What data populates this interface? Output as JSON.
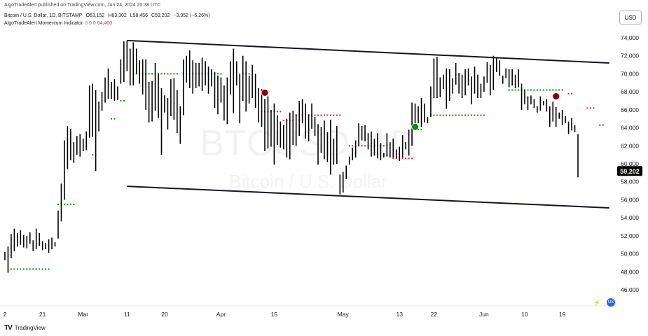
{
  "header": {
    "published": "AlgoTradeAlert published on TradingView.com, Jun 24, 2024 20:38 UTC",
    "symbol": {
      "name": "Bitcoin / U.S. Dollar, 1D, BITSTAMP",
      "open": "O63,152",
      "high": "H63,302",
      "low": "L58,456",
      "close": "C59,202",
      "change": "−3,952 (−6.26%)"
    },
    "indicator": {
      "name": "AlgoTradeAlert Momentum Indicator",
      "params": "0 0 0",
      "value": "64,400"
    }
  },
  "currency_button": "USD",
  "footer": {
    "logo_glyph": "🐯",
    "brand": "TradingView"
  },
  "watermark": {
    "ticker": "BTCUSD, 1D",
    "name": "Bitcoin / U.S. Dollar"
  },
  "colors": {
    "bar": "#000000",
    "support": "#00a000",
    "resistance": "#e91e3a",
    "signal_buy": "#118811",
    "signal_sell": "#8b0000",
    "channel": "#131722",
    "last_price_bg": "#000000"
  },
  "chart_data": {
    "type": "ohlc",
    "y_axis": {
      "min": 45000,
      "max": 75000,
      "ticks": [
        46000,
        48000,
        50000,
        52000,
        54000,
        56000,
        58000,
        60000,
        62000,
        64000,
        66000,
        68000,
        70000,
        72000,
        74000
      ],
      "position": "right"
    },
    "x_axis": {
      "labels": [
        "2",
        "21",
        "Mar",
        "11",
        "20",
        "Apr",
        "15",
        "May",
        "13",
        "22",
        "Jun",
        "10",
        "19"
      ],
      "label_bar_index": [
        0,
        12,
        25,
        39,
        51,
        69,
        86,
        108,
        126,
        137,
        153,
        166,
        178
      ]
    },
    "last_price": {
      "label": "59,202",
      "value": 59202
    },
    "high_low": [
      [
        50200,
        49300
      ],
      [
        50800,
        47900
      ],
      [
        52200,
        49500
      ],
      [
        52800,
        50300
      ],
      [
        52300,
        50800
      ],
      [
        52600,
        51000
      ],
      [
        52100,
        50700
      ],
      [
        52000,
        50600
      ],
      [
        52400,
        51100
      ],
      [
        51500,
        50300
      ],
      [
        52800,
        50500
      ],
      [
        52300,
        50900
      ],
      [
        51400,
        50400
      ],
      [
        51200,
        50500
      ],
      [
        51600,
        50100
      ],
      [
        51800,
        50500
      ],
      [
        51300,
        50800
      ],
      [
        54800,
        51700
      ],
      [
        57800,
        53600
      ],
      [
        62600,
        56000
      ],
      [
        64200,
        59400
      ],
      [
        63900,
        60400
      ],
      [
        62400,
        60100
      ],
      [
        63100,
        61000
      ],
      [
        63300,
        60800
      ],
      [
        62800,
        61400
      ],
      [
        63600,
        61500
      ],
      [
        68700,
        62900
      ],
      [
        68900,
        63000
      ],
      [
        68200,
        59200
      ],
      [
        66900,
        63600
      ],
      [
        68000,
        65900
      ],
      [
        69600,
        66800
      ],
      [
        70600,
        67200
      ],
      [
        69100,
        67200
      ],
      [
        69400,
        67000
      ],
      [
        68600,
        67100
      ],
      [
        71600,
        68900
      ],
      [
        73600,
        69100
      ],
      [
        73700,
        70300
      ],
      [
        72800,
        68700
      ],
      [
        73500,
        68700
      ],
      [
        72800,
        70000
      ],
      [
        71500,
        68900
      ],
      [
        71600,
        67700
      ],
      [
        71600,
        66000
      ],
      [
        69100,
        64600
      ],
      [
        69200,
        64700
      ],
      [
        71200,
        65900
      ],
      [
        70000,
        65100
      ],
      [
        68400,
        61000
      ],
      [
        67600,
        65700
      ],
      [
        67300,
        63800
      ],
      [
        69400,
        65300
      ],
      [
        69500,
        64900
      ],
      [
        68200,
        63400
      ],
      [
        66400,
        62200
      ],
      [
        71600,
        65400
      ],
      [
        72000,
        69000
      ],
      [
        72600,
        68400
      ],
      [
        71500,
        67800
      ],
      [
        71200,
        68400
      ],
      [
        71200,
        68600
      ],
      [
        71800,
        68100
      ],
      [
        71400,
        68700
      ],
      [
        70800,
        67800
      ],
      [
        70500,
        68600
      ],
      [
        70200,
        66200
      ],
      [
        69800,
        65500
      ],
      [
        69600,
        66800
      ],
      [
        68700,
        64800
      ],
      [
        69600,
        64400
      ],
      [
        71400,
        67700
      ],
      [
        72800,
        65600
      ],
      [
        71400,
        68700
      ],
      [
        70000,
        64500
      ],
      [
        72000,
        67000
      ],
      [
        71400,
        65800
      ],
      [
        69800,
        66700
      ],
      [
        71000,
        67300
      ],
      [
        70000,
        66200
      ],
      [
        68400,
        64600
      ],
      [
        68300,
        64100
      ],
      [
        67200,
        61400
      ],
      [
        67500,
        61700
      ],
      [
        66000,
        61900
      ],
      [
        66700,
        59900
      ],
      [
        65400,
        62100
      ],
      [
        64700,
        61800
      ],
      [
        64300,
        61600
      ],
      [
        65000,
        60700
      ],
      [
        65700,
        60500
      ],
      [
        65900,
        62100
      ],
      [
        65500,
        62000
      ],
      [
        67000,
        63100
      ],
      [
        67200,
        64500
      ],
      [
        66700,
        62800
      ],
      [
        65500,
        62500
      ],
      [
        66700,
        63900
      ],
      [
        65200,
        63100
      ],
      [
        64400,
        59900
      ],
      [
        64100,
        61200
      ],
      [
        64800,
        60500
      ],
      [
        63500,
        60200
      ],
      [
        64900,
        58800
      ],
      [
        62800,
        59900
      ],
      [
        64200,
        60000
      ],
      [
        58800,
        56600
      ],
      [
        59100,
        56800
      ],
      [
        59800,
        58300
      ],
      [
        60800,
        59900
      ],
      [
        61800,
        60400
      ],
      [
        62600,
        60700
      ],
      [
        64500,
        62000
      ],
      [
        64200,
        62600
      ],
      [
        64300,
        62500
      ],
      [
        63400,
        61600
      ],
      [
        63600,
        60800
      ],
      [
        62800,
        60900
      ],
      [
        63400,
        60600
      ],
      [
        62300,
        60400
      ],
      [
        61200,
        60700
      ],
      [
        63400,
        60800
      ],
      [
        62400,
        60700
      ],
      [
        62800,
        60700
      ],
      [
        61600,
        60600
      ],
      [
        61900,
        60300
      ],
      [
        63200,
        60700
      ],
      [
        62400,
        61600
      ],
      [
        63800,
        60900
      ],
      [
        66800,
        62000
      ],
      [
        66700,
        63700
      ],
      [
        66400,
        64500
      ],
      [
        67300,
        64100
      ],
      [
        66700,
        64600
      ],
      [
        65200,
        64500
      ],
      [
        68600,
        65200
      ],
      [
        71700,
        67300
      ],
      [
        71900,
        67300
      ],
      [
        69600,
        67400
      ],
      [
        69900,
        68300
      ],
      [
        70600,
        66100
      ],
      [
        70500,
        67000
      ],
      [
        69500,
        67800
      ],
      [
        71200,
        68800
      ],
      [
        70100,
        67800
      ],
      [
        69900,
        67300
      ],
      [
        70500,
        67600
      ],
      [
        70600,
        68700
      ],
      [
        69700,
        66600
      ],
      [
        70800,
        67800
      ],
      [
        69900,
        67300
      ],
      [
        68900,
        67300
      ],
      [
        69700,
        68000
      ],
      [
        71300,
        69000
      ],
      [
        71000,
        67600
      ],
      [
        72000,
        68200
      ],
      [
        71800,
        70200
      ],
      [
        71500,
        69800
      ],
      [
        69800,
        68900
      ],
      [
        70600,
        69500
      ],
      [
        70500,
        68500
      ],
      [
        70500,
        68700
      ],
      [
        69900,
        68400
      ],
      [
        70500,
        68500
      ],
      [
        68900,
        66000
      ],
      [
        68200,
        66600
      ],
      [
        67500,
        66000
      ],
      [
        67600,
        66600
      ],
      [
        67200,
        66200
      ],
      [
        66400,
        65700
      ],
      [
        67500,
        65900
      ],
      [
        67000,
        66500
      ],
      [
        67200,
        65800
      ],
      [
        66400,
        64100
      ],
      [
        66900,
        64700
      ],
      [
        66300,
        64100
      ],
      [
        65700,
        65000
      ],
      [
        66000,
        64300
      ],
      [
        65300,
        64500
      ],
      [
        64700,
        63300
      ],
      [
        65100,
        63700
      ],
      [
        64300,
        63500
      ],
      [
        63300,
        58500
      ]
    ],
    "support_dots": [
      {
        "from": 2,
        "to": 14,
        "y": 48300
      },
      {
        "from": 17,
        "to": 22,
        "y": 55500
      },
      {
        "from": 28,
        "to": 29,
        "y": 61000
      },
      {
        "from": 34,
        "to": 35,
        "y": 65000
      },
      {
        "from": 37,
        "to": 38,
        "y": 67000
      },
      {
        "from": 41,
        "to": 55,
        "y": 70000
      },
      {
        "from": 57,
        "to": 69,
        "y": 70000
      },
      {
        "from": 76,
        "to": 78,
        "y": 70000
      },
      {
        "from": 131,
        "to": 133,
        "y": 63800
      },
      {
        "from": 136,
        "to": 153,
        "y": 65400
      },
      {
        "from": 161,
        "to": 178,
        "y": 68200
      }
    ],
    "resistance_dots": [
      {
        "from": 82,
        "to": 88,
        "y": 65800
      },
      {
        "from": 89,
        "to": 92,
        "y": 64800
      },
      {
        "from": 93,
        "to": 107,
        "y": 65400
      },
      {
        "from": 110,
        "to": 122,
        "y": 62000
      },
      {
        "from": 124,
        "to": 130,
        "y": 60600
      },
      {
        "from": 180,
        "to": 181,
        "y": 67800
      },
      {
        "from": 186,
        "to": 188,
        "y": 66200
      },
      {
        "from": 190,
        "to": 191,
        "y": 64300
      }
    ],
    "signals": [
      {
        "type": "sell",
        "bar": 83,
        "y": 67900
      },
      {
        "type": "buy",
        "bar": 131,
        "y": 64100
      },
      {
        "type": "sell",
        "bar": 176,
        "y": 67500
      }
    ],
    "channel": {
      "upper": {
        "from_bar": 39,
        "from": 73700,
        "to_bar": 193,
        "to": 71200
      },
      "lower": {
        "from_bar": 39,
        "from": 57500,
        "to_bar": 193,
        "to": 55100
      }
    }
  }
}
